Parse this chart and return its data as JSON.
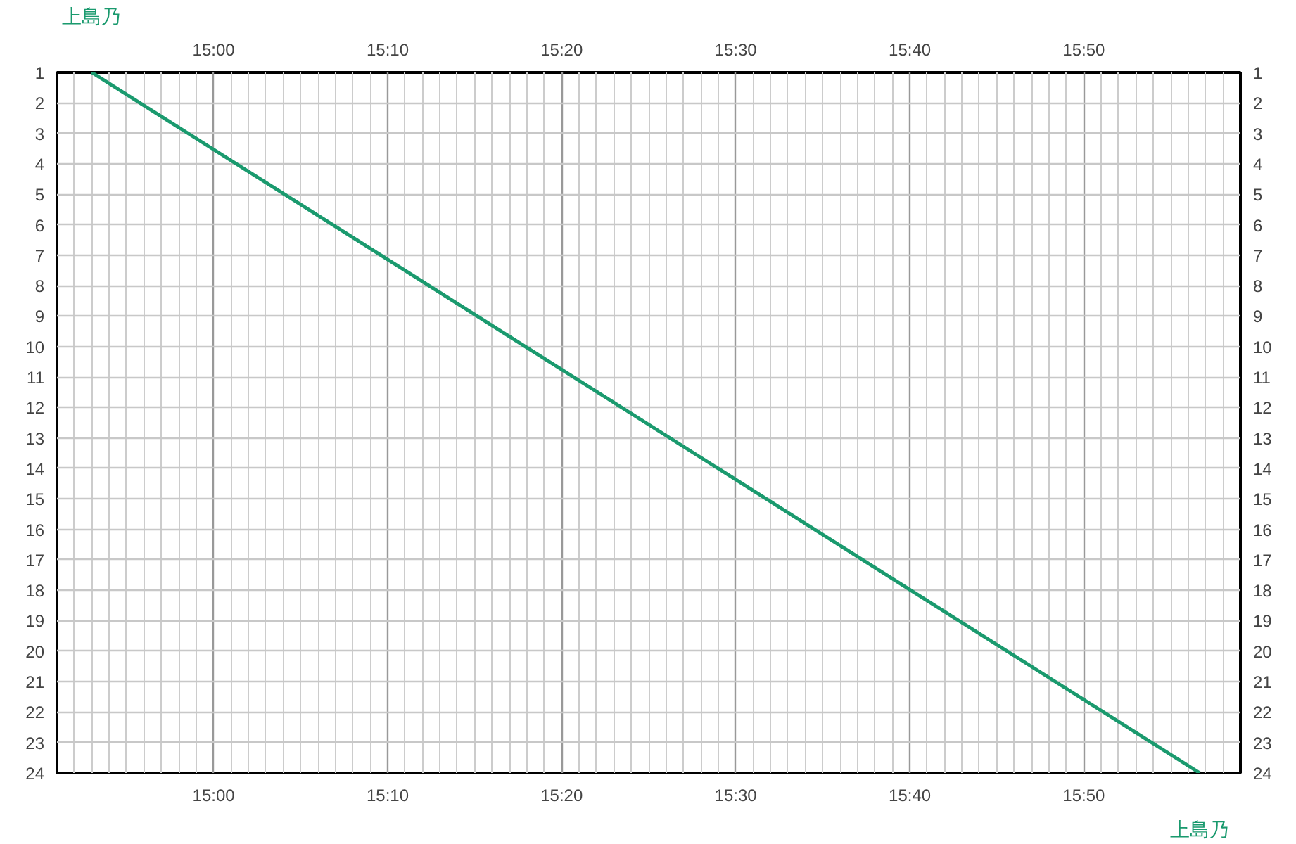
{
  "chart_data": {
    "type": "line",
    "x": [
      14.8833,
      15.9444
    ],
    "series": [
      {
        "color": "#1a9a6e",
        "values": [
          1,
          24
        ]
      }
    ],
    "xlim": [
      14.85,
      15.9833
    ],
    "ylim": [
      24,
      1
    ],
    "x2lim": [
      14.85,
      15.9833
    ],
    "y2lim": [
      24,
      1
    ],
    "xticks": [
      {
        "value": 14.8667,
        "label": null
      },
      {
        "value": 14.8833,
        "label": null
      },
      {
        "value": 14.9,
        "label": null
      },
      {
        "value": 14.9167,
        "label": null
      },
      {
        "value": 14.9333,
        "label": null
      },
      {
        "value": 14.95,
        "label": null
      },
      {
        "value": 14.9667,
        "label": null
      },
      {
        "value": 14.9833,
        "label": null
      },
      {
        "value": 15,
        "label": "15:00"
      },
      {
        "value": 15.0167,
        "label": null
      },
      {
        "value": 15.0333,
        "label": null
      },
      {
        "value": 15.05,
        "label": null
      },
      {
        "value": 15.0667,
        "label": null
      },
      {
        "value": 15.0833,
        "label": null
      },
      {
        "value": 15.1,
        "label": null
      },
      {
        "value": 15.1167,
        "label": null
      },
      {
        "value": 15.1333,
        "label": null
      },
      {
        "value": 15.15,
        "label": null
      },
      {
        "value": 15.1667,
        "label": "15:10"
      },
      {
        "value": 15.1833,
        "label": null
      },
      {
        "value": 15.2,
        "label": null
      },
      {
        "value": 15.2167,
        "label": null
      },
      {
        "value": 15.2333,
        "label": null
      },
      {
        "value": 15.25,
        "label": null
      },
      {
        "value": 15.2667,
        "label": null
      },
      {
        "value": 15.2833,
        "label": null
      },
      {
        "value": 15.3,
        "label": null
      },
      {
        "value": 15.3167,
        "label": null
      },
      {
        "value": 15.3333,
        "label": "15:20"
      },
      {
        "value": 15.35,
        "label": null
      },
      {
        "value": 15.3667,
        "label": null
      },
      {
        "value": 15.3833,
        "label": null
      },
      {
        "value": 15.4,
        "label": null
      },
      {
        "value": 15.4167,
        "label": null
      },
      {
        "value": 15.4333,
        "label": null
      },
      {
        "value": 15.45,
        "label": null
      },
      {
        "value": 15.4667,
        "label": null
      },
      {
        "value": 15.4833,
        "label": null
      },
      {
        "value": 15.5,
        "label": "15:30"
      },
      {
        "value": 15.5167,
        "label": null
      },
      {
        "value": 15.5333,
        "label": null
      },
      {
        "value": 15.55,
        "label": null
      },
      {
        "value": 15.5667,
        "label": null
      },
      {
        "value": 15.5833,
        "label": null
      },
      {
        "value": 15.6,
        "label": null
      },
      {
        "value": 15.6167,
        "label": null
      },
      {
        "value": 15.6333,
        "label": null
      },
      {
        "value": 15.65,
        "label": null
      },
      {
        "value": 15.6667,
        "label": "15:40"
      },
      {
        "value": 15.6833,
        "label": null
      },
      {
        "value": 15.7,
        "label": null
      },
      {
        "value": 15.7167,
        "label": null
      },
      {
        "value": 15.7333,
        "label": null
      },
      {
        "value": 15.75,
        "label": null
      },
      {
        "value": 15.7667,
        "label": null
      },
      {
        "value": 15.7833,
        "label": null
      },
      {
        "value": 15.8,
        "label": null
      },
      {
        "value": 15.8167,
        "label": null
      },
      {
        "value": 15.8333,
        "label": "15:50"
      },
      {
        "value": 15.85,
        "label": null
      },
      {
        "value": 15.8667,
        "label": null
      },
      {
        "value": 15.8833,
        "label": null
      },
      {
        "value": 15.9,
        "label": null
      },
      {
        "value": 15.9167,
        "label": null
      },
      {
        "value": 15.9333,
        "label": null
      },
      {
        "value": 15.95,
        "label": null
      },
      {
        "value": 15.9667,
        "label": null
      }
    ],
    "x2ticks": [
      {
        "value": 15,
        "label": "15:00"
      },
      {
        "value": 15.1667,
        "label": "15:10"
      },
      {
        "value": 15.3333,
        "label": "15:20"
      },
      {
        "value": 15.5,
        "label": "15:30"
      },
      {
        "value": 15.6667,
        "label": "15:40"
      },
      {
        "value": 15.8333,
        "label": "15:50"
      }
    ],
    "yticks": [
      1,
      2,
      3,
      4,
      5,
      6,
      7,
      8,
      9,
      10,
      11,
      12,
      13,
      14,
      15,
      16,
      17,
      18,
      19,
      20,
      21,
      22,
      23,
      24
    ],
    "y2ticks": [
      1,
      2,
      3,
      4,
      5,
      6,
      7,
      8,
      9,
      10,
      11,
      12,
      13,
      14,
      15,
      16,
      17,
      18,
      19,
      20,
      21,
      22,
      23,
      24
    ],
    "grid": true,
    "annotations": [
      {
        "text": "上島乃",
        "x": 14.8833,
        "y": 1
      },
      {
        "text": "上島乃",
        "x": 15.9444,
        "y": 24
      }
    ]
  }
}
